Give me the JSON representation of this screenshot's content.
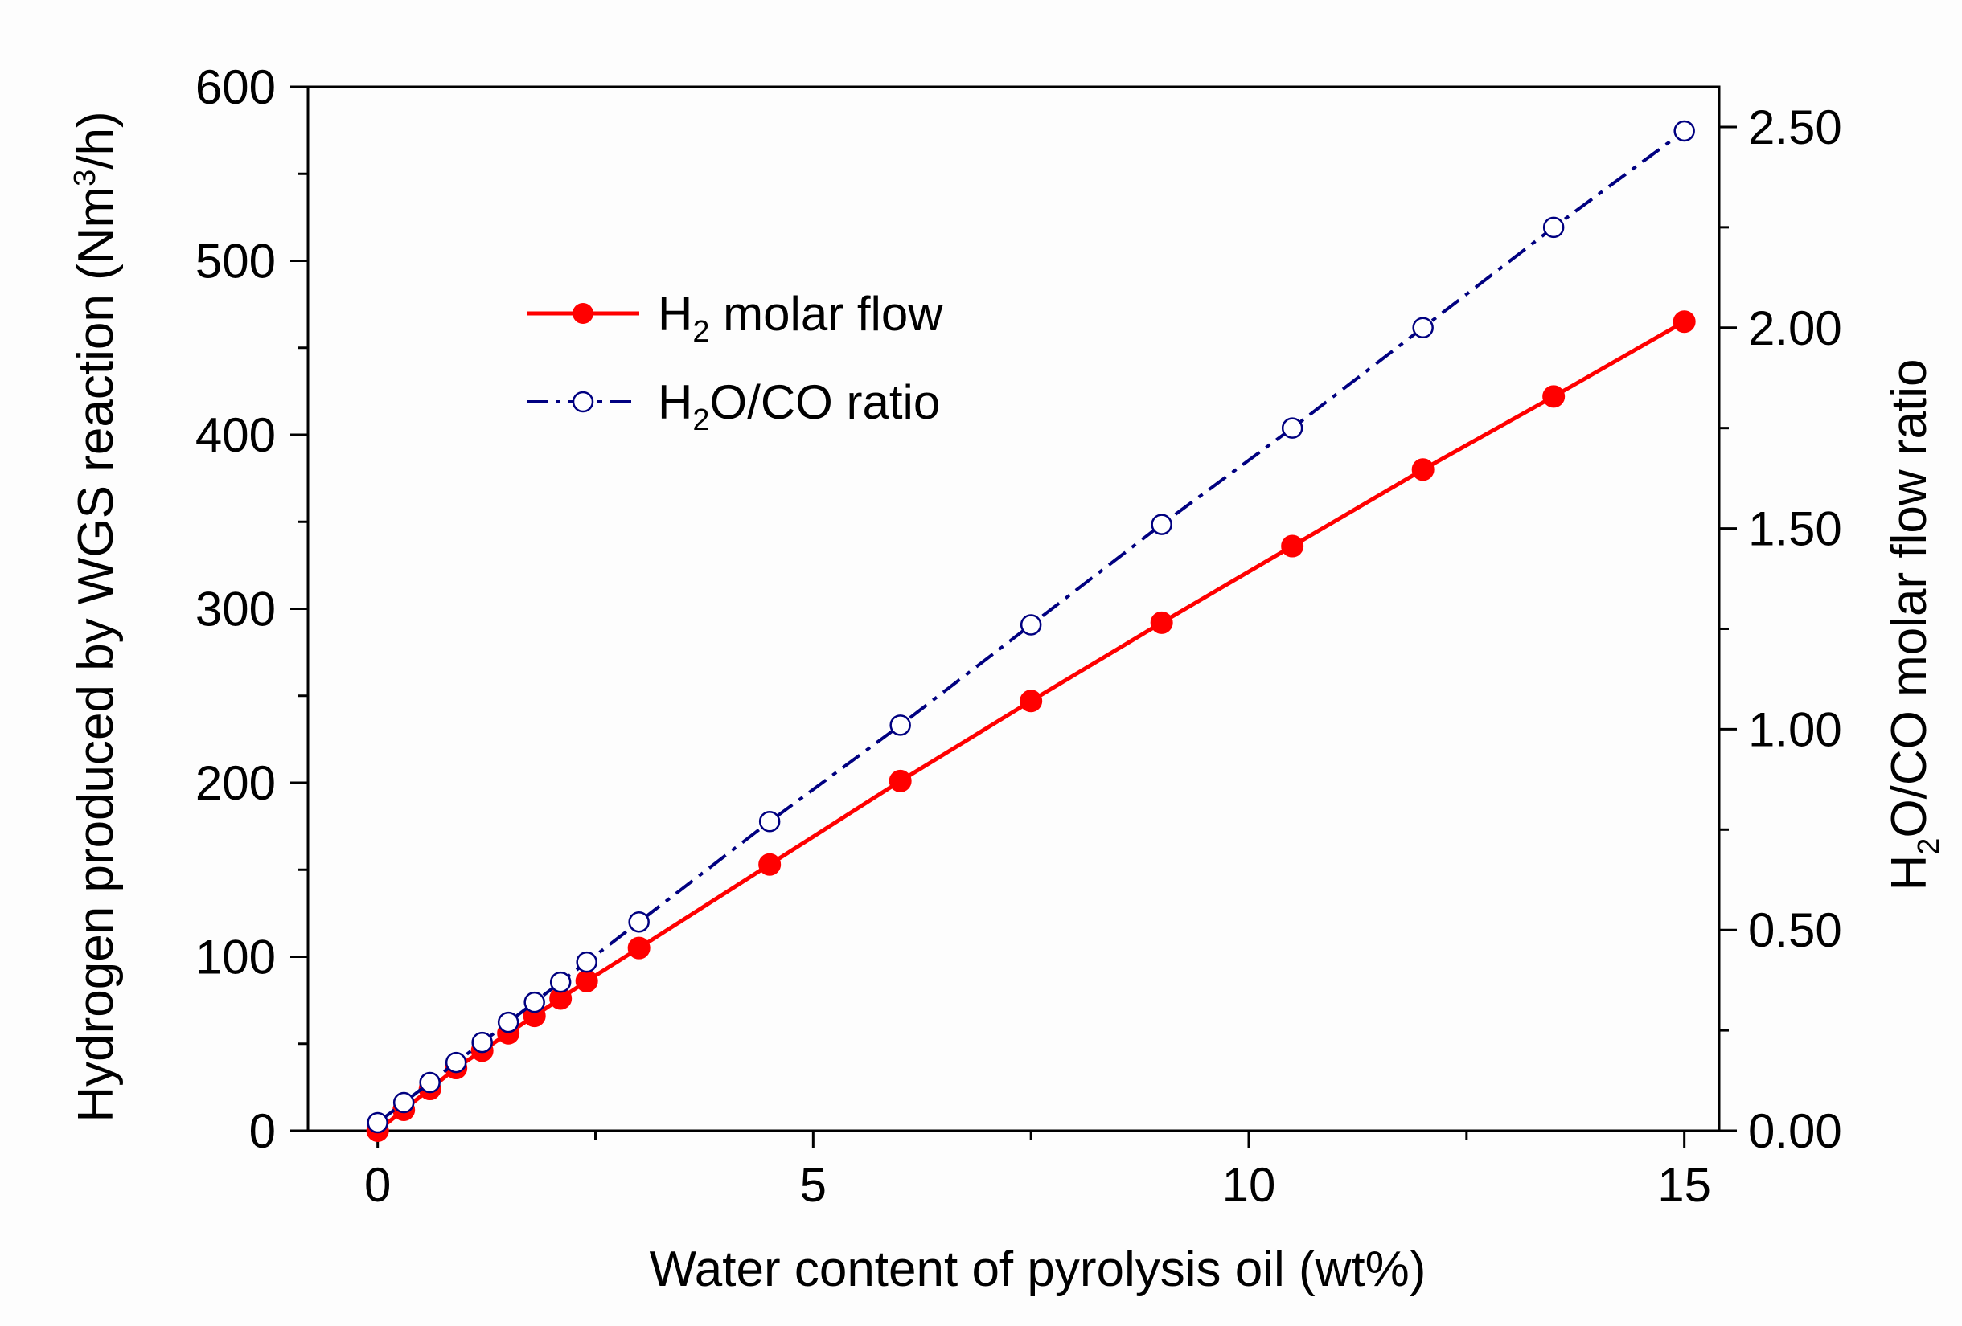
{
  "chart_data": {
    "type": "line",
    "title": "",
    "xlabel": "Water content of pyrolysis oil (wt%)",
    "ylabel": {
      "prefix": "Hydrogen produced by WGS reaction (Nm",
      "sup": "3",
      "suffix": "/h)"
    },
    "y2label": {
      "h": "H",
      "sub": "2",
      "rest": "O/CO molar flow ratio"
    },
    "xlim": [
      -0.8,
      15.4
    ],
    "ylim": [
      0,
      600
    ],
    "y2lim": [
      0,
      2.6
    ],
    "x_ticks": [
      0,
      5,
      10,
      15
    ],
    "x_tick_labels": [
      "0",
      "5",
      "10",
      "15"
    ],
    "y_ticks": [
      0,
      100,
      200,
      300,
      400,
      500,
      600
    ],
    "y_tick_labels": [
      "0",
      "100",
      "200",
      "300",
      "400",
      "500",
      "600"
    ],
    "y2_ticks": [
      0,
      0.5,
      1.0,
      1.5,
      2.0,
      2.5
    ],
    "y2_tick_labels": [
      "0.00",
      "0.50",
      "1.00",
      "1.50",
      "2.00",
      "2.50"
    ],
    "legend_position": "upper-left",
    "series": [
      {
        "name": "H2 molar flow",
        "legend": {
          "h": "H",
          "sub": "2",
          "rest": " molar flow"
        },
        "axis": "left",
        "color": "#ff0000",
        "marker": "filled-circle",
        "line": "solid",
        "x": [
          0,
          0.3,
          0.6,
          0.9,
          1.2,
          1.5,
          1.8,
          2.1,
          2.4,
          3.0,
          4.5,
          6.0,
          7.5,
          9.0,
          10.5,
          12.0,
          13.5,
          15.0
        ],
        "values": [
          0,
          12,
          24,
          36,
          46,
          56,
          66,
          76,
          86,
          105,
          153,
          201,
          247,
          292,
          336,
          380,
          422,
          465
        ]
      },
      {
        "name": "H2O/CO ratio",
        "legend": {
          "h": "H",
          "sub": "2",
          "rest": "O/CO ratio"
        },
        "axis": "right",
        "color": "#000080",
        "marker": "open-circle",
        "line": "dash-dot",
        "x": [
          0,
          0.3,
          0.6,
          0.9,
          1.2,
          1.5,
          1.8,
          2.1,
          2.4,
          3.0,
          4.5,
          6.0,
          7.5,
          9.0,
          10.5,
          12.0,
          13.5,
          15.0
        ],
        "values": [
          0.02,
          0.07,
          0.12,
          0.17,
          0.22,
          0.27,
          0.32,
          0.37,
          0.42,
          0.52,
          0.77,
          1.01,
          1.26,
          1.51,
          1.75,
          2.0,
          2.25,
          2.49
        ]
      }
    ]
  }
}
